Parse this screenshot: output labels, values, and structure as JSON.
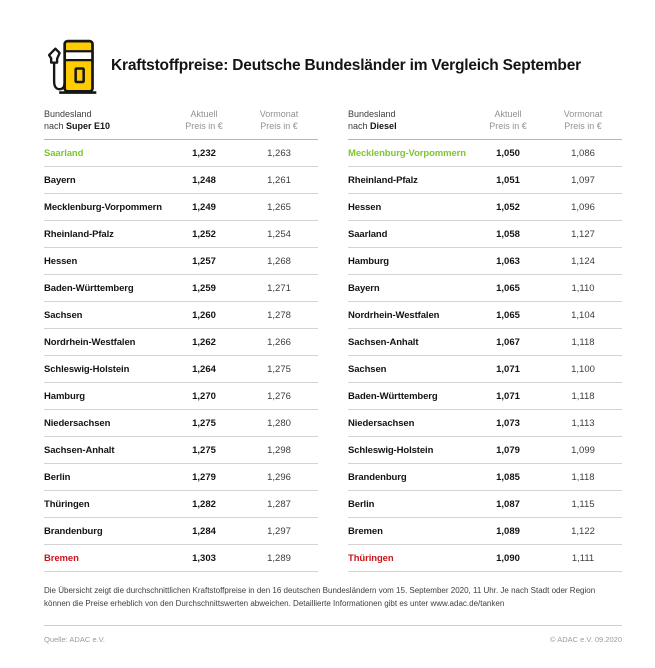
{
  "header": {
    "title": "Kraftstoffpreise: Deutsche Bundesländer im Vergleich September"
  },
  "colors": {
    "brand-yellow": "#ffcc00",
    "icon-outline": "#161616",
    "highlight-green": "#7dc72c",
    "highlight-red": "#c8161c"
  },
  "chart_data": [
    {
      "type": "table",
      "fuel": "Super E10",
      "header": {
        "col1_line1": "Bundesland",
        "col1_nach": "nach",
        "col2_line1": "Aktuell",
        "col2_line2": "Preis in €",
        "col3_line1": "Vormonat",
        "col3_line2": "Preis in €"
      },
      "rows": [
        {
          "state": "Saarland",
          "aktuell": "1,232",
          "vormonat": "1,263",
          "highlight": "green"
        },
        {
          "state": "Bayern",
          "aktuell": "1,248",
          "vormonat": "1,261",
          "highlight": null
        },
        {
          "state": "Mecklenburg-Vorpommern",
          "aktuell": "1,249",
          "vormonat": "1,265",
          "highlight": null
        },
        {
          "state": "Rheinland-Pfalz",
          "aktuell": "1,252",
          "vormonat": "1,254",
          "highlight": null
        },
        {
          "state": "Hessen",
          "aktuell": "1,257",
          "vormonat": "1,268",
          "highlight": null
        },
        {
          "state": "Baden-Württemberg",
          "aktuell": "1,259",
          "vormonat": "1,271",
          "highlight": null
        },
        {
          "state": "Sachsen",
          "aktuell": "1,260",
          "vormonat": "1,278",
          "highlight": null
        },
        {
          "state": "Nordrhein-Westfalen",
          "aktuell": "1,262",
          "vormonat": "1,266",
          "highlight": null
        },
        {
          "state": "Schleswig-Holstein",
          "aktuell": "1,264",
          "vormonat": "1,275",
          "highlight": null
        },
        {
          "state": "Hamburg",
          "aktuell": "1,270",
          "vormonat": "1,276",
          "highlight": null
        },
        {
          "state": "Niedersachsen",
          "aktuell": "1,275",
          "vormonat": "1,280",
          "highlight": null
        },
        {
          "state": "Sachsen-Anhalt",
          "aktuell": "1,275",
          "vormonat": "1,298",
          "highlight": null
        },
        {
          "state": "Berlin",
          "aktuell": "1,279",
          "vormonat": "1,296",
          "highlight": null
        },
        {
          "state": "Thüringen",
          "aktuell": "1,282",
          "vormonat": "1,287",
          "highlight": null
        },
        {
          "state": "Brandenburg",
          "aktuell": "1,284",
          "vormonat": "1,297",
          "highlight": null
        },
        {
          "state": "Bremen",
          "aktuell": "1,303",
          "vormonat": "1,289",
          "highlight": "red"
        }
      ]
    },
    {
      "type": "table",
      "fuel": "Diesel",
      "header": {
        "col1_line1": "Bundesland",
        "col1_nach": "nach",
        "col2_line1": "Aktuell",
        "col2_line2": "Preis in €",
        "col3_line1": "Vormonat",
        "col3_line2": "Preis in €"
      },
      "rows": [
        {
          "state": "Mecklenburg-Vorpommern",
          "aktuell": "1,050",
          "vormonat": "1,086",
          "highlight": "green"
        },
        {
          "state": "Rheinland-Pfalz",
          "aktuell": "1,051",
          "vormonat": "1,097",
          "highlight": null
        },
        {
          "state": "Hessen",
          "aktuell": "1,052",
          "vormonat": "1,096",
          "highlight": null
        },
        {
          "state": "Saarland",
          "aktuell": "1,058",
          "vormonat": "1,127",
          "highlight": null
        },
        {
          "state": "Hamburg",
          "aktuell": "1,063",
          "vormonat": "1,124",
          "highlight": null
        },
        {
          "state": "Bayern",
          "aktuell": "1,065",
          "vormonat": "1,110",
          "highlight": null
        },
        {
          "state": "Nordrhein-Westfalen",
          "aktuell": "1,065",
          "vormonat": "1,104",
          "highlight": null
        },
        {
          "state": "Sachsen-Anhalt",
          "aktuell": "1,067",
          "vormonat": "1,118",
          "highlight": null
        },
        {
          "state": "Sachsen",
          "aktuell": "1,071",
          "vormonat": "1,100",
          "highlight": null
        },
        {
          "state": "Baden-Württemberg",
          "aktuell": "1,071",
          "vormonat": "1,118",
          "highlight": null
        },
        {
          "state": "Niedersachsen",
          "aktuell": "1,073",
          "vormonat": "1,113",
          "highlight": null
        },
        {
          "state": "Schleswig-Holstein",
          "aktuell": "1,079",
          "vormonat": "1,099",
          "highlight": null
        },
        {
          "state": "Brandenburg",
          "aktuell": "1,085",
          "vormonat": "1,118",
          "highlight": null
        },
        {
          "state": "Berlin",
          "aktuell": "1,087",
          "vormonat": "1,115",
          "highlight": null
        },
        {
          "state": "Bremen",
          "aktuell": "1,089",
          "vormonat": "1,122",
          "highlight": null
        },
        {
          "state": "Thüringen",
          "aktuell": "1,090",
          "vormonat": "1,111",
          "highlight": "red"
        }
      ]
    }
  ],
  "footer": {
    "disclaimer": "Die Übersicht zeigt die durchschnittlichen Kraftstoffpreise in den 16 deutschen Bundesländern vom 15. September 2020, 11 Uhr. Je nach Stadt oder Region können die Preise erheblich von den Durchschnittswerten abweichen. Detaillierte Informationen gibt es unter www.adac.de/tanken",
    "source": "Quelle: ADAC e.V.",
    "copyright": "© ADAC e.V. 09.2020"
  }
}
